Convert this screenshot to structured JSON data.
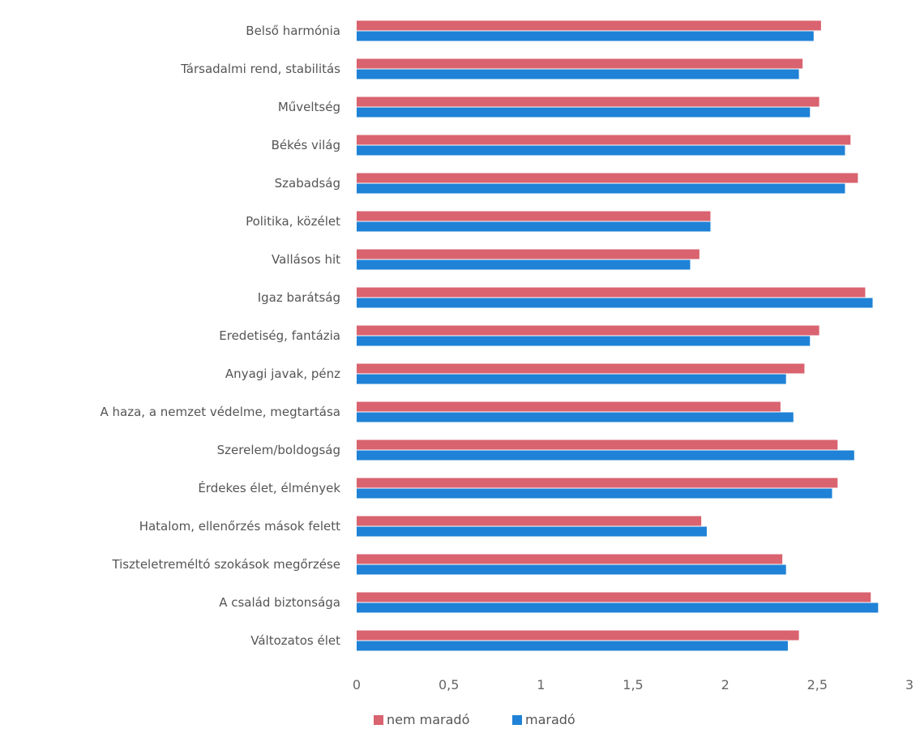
{
  "chart_data": {
    "type": "bar",
    "orientation": "horizontal",
    "categories": [
      "Belső harmónia",
      "Társadalmi rend, stabilitás",
      "Műveltség",
      "Békés világ",
      "Szabadság",
      "Politika, közélet",
      "Vallásos hit",
      "Igaz barátság",
      "Eredetiség, fantázia",
      "Anyagi javak, pénz",
      "A haza, a nemzet védelme, megtartása",
      "Szerelem/boldogság",
      "Érdekes élet, élmények",
      "Hatalom, ellenőrzés mások felett",
      "Tiszteletreméltó szokások megőrzése",
      "A család biztonsága",
      "Változatos élet"
    ],
    "series": [
      {
        "name": "nem maradó",
        "color": "#d9636f",
        "values": [
          2.52,
          2.42,
          2.51,
          2.68,
          2.72,
          1.92,
          1.86,
          2.76,
          2.51,
          2.43,
          2.3,
          2.61,
          2.61,
          1.87,
          2.31,
          2.79,
          2.4
        ]
      },
      {
        "name": "maradó",
        "color": "#1f82d6",
        "values": [
          2.48,
          2.4,
          2.46,
          2.65,
          2.65,
          1.92,
          1.81,
          2.8,
          2.46,
          2.33,
          2.37,
          2.7,
          2.58,
          1.9,
          2.33,
          2.83,
          2.34
        ]
      }
    ],
    "x_ticks": [
      "0",
      "0,5",
      "1",
      "1,5",
      "2",
      "2,5",
      "3"
    ],
    "xlim": [
      0,
      3
    ],
    "title": "",
    "xlabel": "",
    "ylabel": "",
    "grid": false,
    "legend_position": "bottom"
  }
}
